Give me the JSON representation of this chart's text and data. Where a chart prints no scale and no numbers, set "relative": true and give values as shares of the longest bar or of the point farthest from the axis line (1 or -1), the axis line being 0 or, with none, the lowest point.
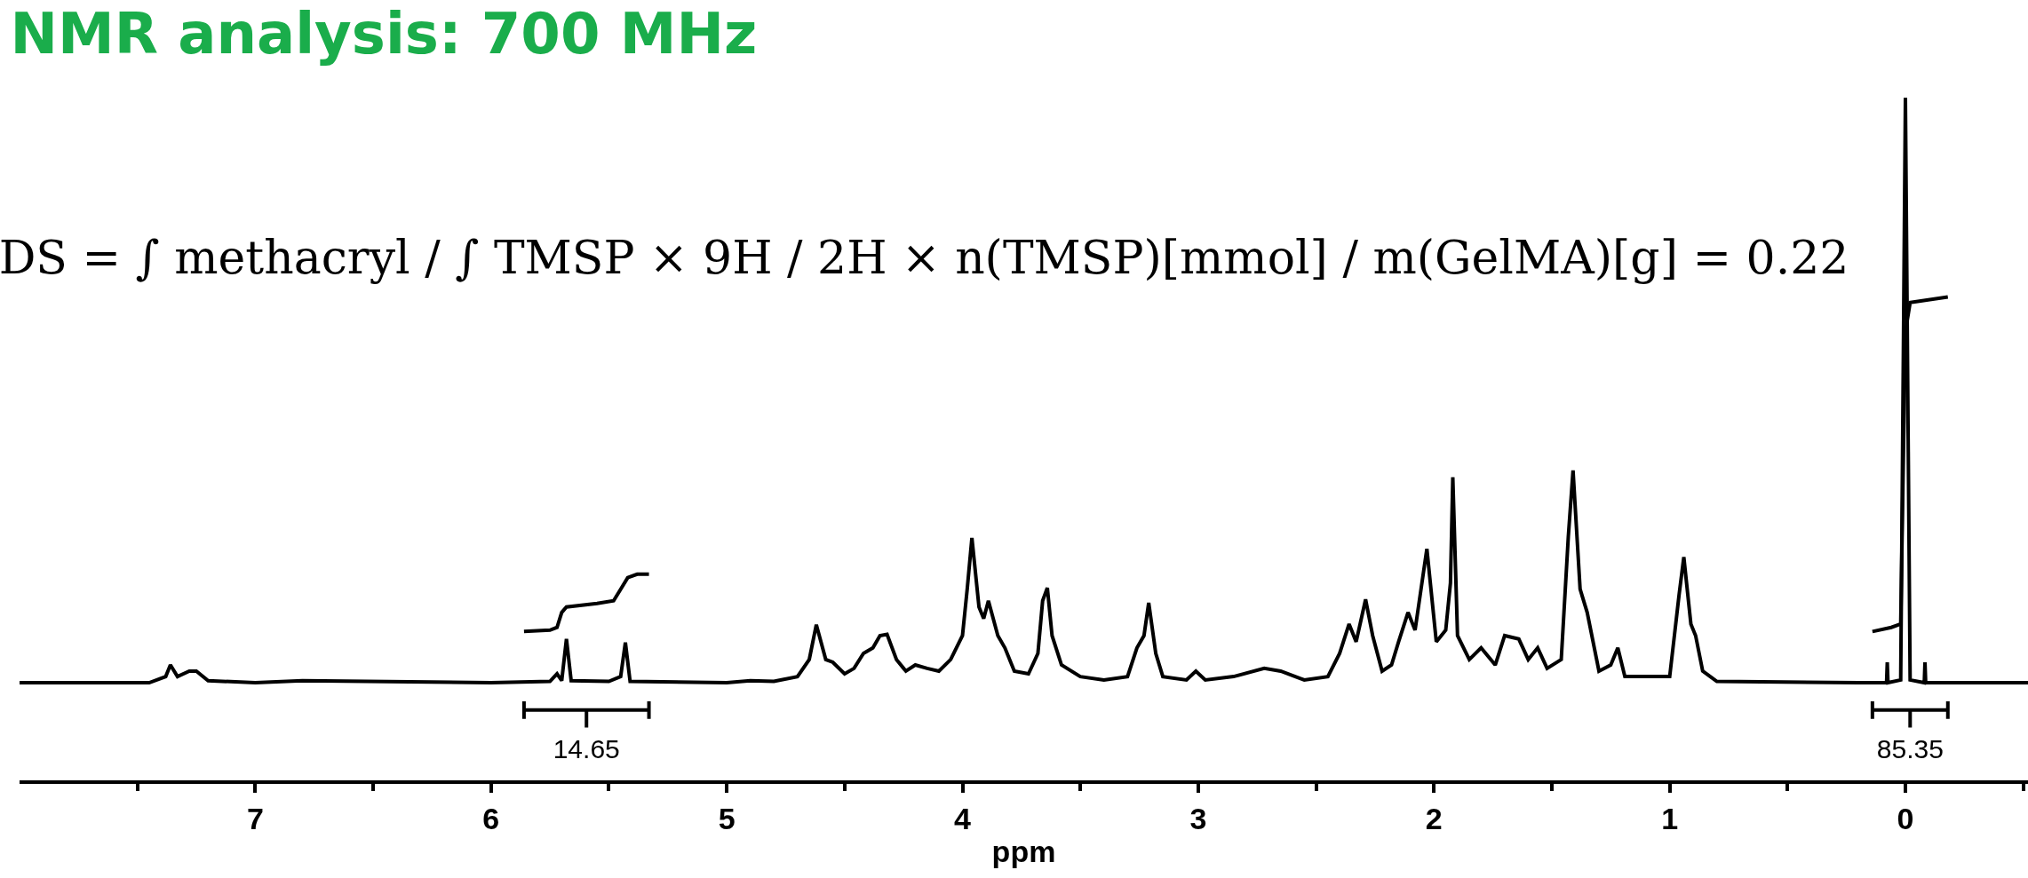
{
  "chart_data": {
    "type": "line",
    "title": "NMR analysis: 700 MHz",
    "xlabel": "ppm",
    "relative": true,
    "xlim": [
      8.0,
      -0.52
    ],
    "xticks": [
      {
        "value": 7.5,
        "label": null
      },
      7,
      {
        "value": 6.5,
        "label": null
      },
      6,
      {
        "value": 5.5,
        "label": null
      },
      5,
      {
        "value": 4.5,
        "label": null
      },
      4,
      {
        "value": 3.5,
        "label": null
      },
      3,
      {
        "value": 2.5,
        "label": null
      },
      2,
      {
        "value": 1.5,
        "label": null
      },
      1,
      {
        "value": 0.5,
        "label": null
      },
      0,
      {
        "value": -0.5,
        "label": null
      }
    ],
    "grid": false,
    "marker": "none",
    "line_style": "solid",
    "series": [
      {
        "color": "#000000",
        "x": [
          8.0,
          7.45,
          7.38,
          7.36,
          7.33,
          7.28,
          7.25,
          7.2,
          7.0,
          6.8,
          6.0,
          5.75,
          5.72,
          5.7,
          5.68,
          5.66,
          5.5,
          5.45,
          5.43,
          5.41,
          5.0,
          4.9,
          4.8,
          4.7,
          4.65,
          4.62,
          4.58,
          4.55,
          4.5,
          4.46,
          4.42,
          4.38,
          4.35,
          4.32,
          4.28,
          4.24,
          4.2,
          4.15,
          4.1,
          4.05,
          4.0,
          3.98,
          3.96,
          3.93,
          3.91,
          3.89,
          3.85,
          3.82,
          3.78,
          3.72,
          3.68,
          3.66,
          3.64,
          3.62,
          3.58,
          3.5,
          3.4,
          3.3,
          3.26,
          3.23,
          3.21,
          3.18,
          3.15,
          3.05,
          3.01,
          2.97,
          2.85,
          2.72,
          2.65,
          2.55,
          2.45,
          2.4,
          2.36,
          2.33,
          2.29,
          2.26,
          2.22,
          2.18,
          2.15,
          2.11,
          2.08,
          2.03,
          1.99,
          1.95,
          1.93,
          1.92,
          1.9,
          1.85,
          1.8,
          1.74,
          1.7,
          1.64,
          1.6,
          1.56,
          1.52,
          1.46,
          1.43,
          1.41,
          1.38,
          1.35,
          1.3,
          1.25,
          1.22,
          1.19,
          1.0,
          0.96,
          0.94,
          0.91,
          0.89,
          0.86,
          0.8,
          0.2,
          0.08,
          0.077,
          0.074,
          0.02,
          0.0,
          -0.02,
          -0.08,
          -0.083,
          -0.086,
          -0.52
        ],
        "values": [
          0.143,
          0.143,
          0.152,
          0.169,
          0.152,
          0.16,
          0.16,
          0.146,
          0.143,
          0.146,
          0.143,
          0.145,
          0.156,
          0.146,
          0.207,
          0.146,
          0.145,
          0.152,
          0.202,
          0.145,
          0.143,
          0.146,
          0.145,
          0.152,
          0.177,
          0.228,
          0.177,
          0.173,
          0.156,
          0.164,
          0.186,
          0.194,
          0.212,
          0.214,
          0.177,
          0.16,
          0.169,
          0.164,
          0.16,
          0.177,
          0.212,
          0.28,
          0.355,
          0.254,
          0.237,
          0.263,
          0.212,
          0.194,
          0.16,
          0.156,
          0.186,
          0.263,
          0.282,
          0.212,
          0.169,
          0.152,
          0.147,
          0.152,
          0.194,
          0.212,
          0.26,
          0.186,
          0.152,
          0.147,
          0.16,
          0.147,
          0.152,
          0.164,
          0.16,
          0.147,
          0.152,
          0.186,
          0.229,
          0.203,
          0.265,
          0.212,
          0.16,
          0.169,
          0.203,
          0.246,
          0.22,
          0.339,
          0.203,
          0.22,
          0.289,
          0.444,
          0.212,
          0.177,
          0.194,
          0.169,
          0.212,
          0.207,
          0.177,
          0.194,
          0.164,
          0.177,
          0.357,
          0.454,
          0.28,
          0.246,
          0.16,
          0.169,
          0.194,
          0.152,
          0.152,
          0.272,
          0.327,
          0.229,
          0.212,
          0.16,
          0.145,
          0.143,
          0.143,
          0.173,
          0.143,
          0.147,
          1,
          0.147,
          0.143,
          0.173,
          0.143,
          0.143
        ]
      },
      {
        "color": "#000000",
        "x": [
          5.86,
          5.75,
          5.72,
          5.7,
          5.68,
          5.55,
          5.48,
          5.45,
          5.42,
          5.38,
          5.33
        ],
        "values": [
          0.218,
          0.22,
          0.224,
          0.246,
          0.254,
          0.259,
          0.263,
          0.28,
          0.297,
          0.302,
          0.302
        ]
      },
      {
        "color": "#000000",
        "x": [
          0.14,
          0.06,
          0.02,
          0.0,
          -0.02,
          -0.18
        ],
        "values": [
          0.218,
          0.224,
          0.229,
          0.657,
          0.7,
          0.708
        ]
      }
    ],
    "subtitle": "DS = ∫ methacryl / ∫ TMSP × 9H / 2H × n(TMSP)[mmol] / m(GelMA)[g] = 0.22",
    "annotations": [
      "14.65",
      "85.35"
    ]
  }
}
